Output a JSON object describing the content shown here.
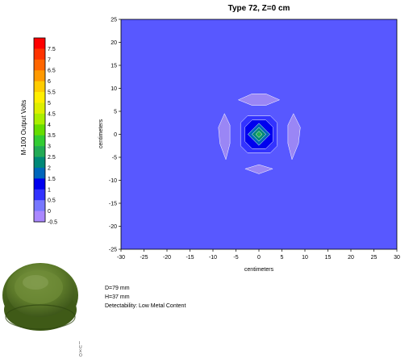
{
  "chart_data": {
    "type": "heatmap",
    "title": "Type 72, Z=0 cm",
    "xlabel": "centimeters",
    "ylabel": "centimeters",
    "xlim": [
      -30,
      30
    ],
    "ylim": [
      -25,
      25
    ],
    "xticks": [
      -30,
      -25,
      -20,
      -15,
      -10,
      -5,
      0,
      5,
      10,
      15,
      20,
      25,
      30
    ],
    "yticks": [
      -25,
      -20,
      -15,
      -10,
      -5,
      0,
      5,
      10,
      15,
      20,
      25
    ],
    "background_level": -0.25,
    "colorbar": {
      "label": "M-100 Output Volts",
      "levels": [
        {
          "label": "7.5",
          "color": "#ff0000"
        },
        {
          "label": "7",
          "color": "#ff3300"
        },
        {
          "label": "6.5",
          "color": "#ff6600"
        },
        {
          "label": "6",
          "color": "#ff9900"
        },
        {
          "label": "5.5",
          "color": "#ffcc00"
        },
        {
          "label": "5",
          "color": "#ffee00"
        },
        {
          "label": "4.5",
          "color": "#ddee00"
        },
        {
          "label": "4",
          "color": "#aaee00"
        },
        {
          "label": "3.5",
          "color": "#66dd00"
        },
        {
          "label": "3",
          "color": "#33cc33"
        },
        {
          "label": "2.5",
          "color": "#22aa55"
        },
        {
          "label": "2",
          "color": "#008877"
        },
        {
          "label": "1.5",
          "color": "#0066bb"
        },
        {
          "label": "1",
          "color": "#0000ee"
        },
        {
          "label": "0.5",
          "color": "#3333ff"
        },
        {
          "label": "0",
          "color": "#7777ff"
        },
        {
          "label": "-0.5",
          "color": "#aa88ff"
        }
      ]
    },
    "contours": [
      {
        "name": "lobe-top",
        "level": 0,
        "color": "#9a86f5",
        "points": [
          [
            -4.5,
            7.5
          ],
          [
            -1.5,
            8.8
          ],
          [
            1.5,
            8.8
          ],
          [
            4.5,
            7.5
          ],
          [
            1.5,
            6.3
          ],
          [
            -1.5,
            6.3
          ]
        ]
      },
      {
        "name": "lobe-left",
        "level": 0,
        "color": "#9a86f5",
        "points": [
          [
            -7.5,
            4.5
          ],
          [
            -8.8,
            1.5
          ],
          [
            -8.5,
            -2
          ],
          [
            -7.2,
            -5.5
          ],
          [
            -6.3,
            -2
          ],
          [
            -6.3,
            2
          ]
        ]
      },
      {
        "name": "lobe-right",
        "level": 0,
        "color": "#9a86f5",
        "points": [
          [
            7.5,
            4.5
          ],
          [
            9,
            1.5
          ],
          [
            8.6,
            -2
          ],
          [
            7.2,
            -5.5
          ],
          [
            6.3,
            -2
          ],
          [
            6.3,
            2
          ]
        ]
      },
      {
        "name": "lobe-bottom",
        "level": 0,
        "color": "#9a86f5",
        "points": [
          [
            -3,
            -7.5
          ],
          [
            0,
            -6.6
          ],
          [
            3,
            -7.5
          ],
          [
            0,
            -8.6
          ]
        ]
      },
      {
        "name": "ring-0.5",
        "level": 0.5,
        "color": "#3333ff",
        "points": [
          [
            -2.5,
            4
          ],
          [
            2.5,
            4
          ],
          [
            4,
            2.5
          ],
          [
            4,
            -2.5
          ],
          [
            2.5,
            -4
          ],
          [
            -2.5,
            -4
          ],
          [
            -4,
            -2.5
          ],
          [
            -4,
            2.5
          ]
        ]
      },
      {
        "name": "ring-1",
        "level": 1,
        "color": "#0000ee",
        "points": [
          [
            -1.5,
            3.1
          ],
          [
            1.5,
            3.1
          ],
          [
            3.1,
            1.5
          ],
          [
            3.1,
            -1.5
          ],
          [
            1.5,
            -3.1
          ],
          [
            -1.5,
            -3.1
          ],
          [
            -3.1,
            -1.5
          ],
          [
            -3.1,
            1.5
          ]
        ]
      },
      {
        "name": "ring-1.5",
        "level": 1.5,
        "color": "#0066bb",
        "points": [
          [
            0,
            2.4
          ],
          [
            2.4,
            0
          ],
          [
            0,
            -2.4
          ],
          [
            -2.4,
            0
          ]
        ]
      },
      {
        "name": "ring-2",
        "level": 2,
        "color": "#008877",
        "points": [
          [
            0,
            1.5
          ],
          [
            1.5,
            0
          ],
          [
            0,
            -1.5
          ],
          [
            -1.5,
            0
          ]
        ]
      },
      {
        "name": "ring-2.5",
        "level": 2.5,
        "color": "#22aa55",
        "points": [
          [
            0,
            0.7
          ],
          [
            0.7,
            0
          ],
          [
            0,
            -0.7
          ],
          [
            -0.7,
            0
          ]
        ]
      }
    ]
  },
  "info": {
    "diameter": "D=79 mm",
    "height": "H=37 mm",
    "detectability": "Detectability: Low Metal Content"
  },
  "logo": {
    "glyphs": [
      "I",
      "U",
      "X",
      "O"
    ]
  }
}
